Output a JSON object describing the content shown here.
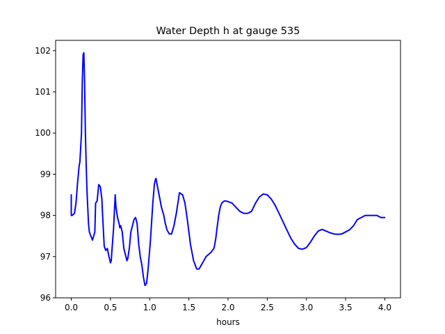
{
  "chart_data": {
    "type": "line",
    "title": "Water Depth h at gauge 535",
    "xlabel": "hours",
    "ylabel": "",
    "xlim": [
      -0.2,
      4.2
    ],
    "ylim": [
      96,
      102.25
    ],
    "xticks": [
      "0.0",
      "0.5",
      "1.0",
      "1.5",
      "2.0",
      "2.5",
      "3.0",
      "3.5",
      "4.0"
    ],
    "yticks": [
      "96",
      "97",
      "98",
      "99",
      "100",
      "101",
      "102"
    ],
    "grid": false,
    "legend": "none",
    "series": [
      {
        "color": "#0000ff",
        "x": [
          0.0,
          0.0,
          0.01,
          0.04,
          0.06,
          0.08,
          0.1,
          0.11,
          0.13,
          0.14,
          0.15,
          0.16,
          0.17,
          0.18,
          0.19,
          0.2,
          0.22,
          0.23,
          0.25,
          0.27,
          0.3,
          0.31,
          0.33,
          0.35,
          0.37,
          0.39,
          0.4,
          0.42,
          0.44,
          0.46,
          0.48,
          0.5,
          0.51,
          0.52,
          0.54,
          0.56,
          0.57,
          0.59,
          0.61,
          0.62,
          0.63,
          0.65,
          0.67,
          0.69,
          0.71,
          0.72,
          0.74,
          0.76,
          0.78,
          0.8,
          0.82,
          0.84,
          0.86,
          0.88,
          0.9,
          0.92,
          0.94,
          0.96,
          0.98,
          1.01,
          1.04,
          1.06,
          1.07,
          1.08,
          1.1,
          1.12,
          1.15,
          1.18,
          1.2,
          1.22,
          1.25,
          1.28,
          1.31,
          1.34,
          1.38,
          1.42,
          1.45,
          1.48,
          1.52,
          1.56,
          1.6,
          1.63,
          1.66,
          1.69,
          1.72,
          1.75,
          1.78,
          1.82,
          1.84,
          1.86,
          1.88,
          1.9,
          1.92,
          1.95,
          1.98,
          2.05,
          2.1,
          2.15,
          2.2,
          2.25,
          2.3,
          2.35,
          2.4,
          2.45,
          2.5,
          2.55,
          2.6,
          2.65,
          2.7,
          2.75,
          2.8,
          2.85,
          2.9,
          2.95,
          3.0,
          3.05,
          3.1,
          3.15,
          3.2,
          3.25,
          3.3,
          3.35,
          3.4,
          3.45,
          3.5,
          3.55,
          3.6,
          3.65,
          3.7,
          3.75,
          3.8,
          3.85,
          3.9,
          3.95,
          4.0
        ],
        "y": [
          98.5,
          98.0,
          98.0,
          98.05,
          98.3,
          98.8,
          99.2,
          99.3,
          100.0,
          101.2,
          101.9,
          101.95,
          101.2,
          100.0,
          99.2,
          98.6,
          97.8,
          97.6,
          97.5,
          97.4,
          97.6,
          98.3,
          98.35,
          98.75,
          98.7,
          98.4,
          98.0,
          97.25,
          97.15,
          97.2,
          97.0,
          96.85,
          96.9,
          97.2,
          97.7,
          98.5,
          98.2,
          97.95,
          97.8,
          97.7,
          97.75,
          97.6,
          97.2,
          97.05,
          96.9,
          96.95,
          97.2,
          97.6,
          97.75,
          97.9,
          97.95,
          97.8,
          97.3,
          97.0,
          96.8,
          96.5,
          96.3,
          96.35,
          96.7,
          97.4,
          98.3,
          98.75,
          98.85,
          98.9,
          98.7,
          98.5,
          98.2,
          98.0,
          97.8,
          97.65,
          97.55,
          97.55,
          97.75,
          98.05,
          98.55,
          98.5,
          98.3,
          97.9,
          97.3,
          96.9,
          96.7,
          96.7,
          96.8,
          96.9,
          97.0,
          97.05,
          97.1,
          97.2,
          97.4,
          97.7,
          98.0,
          98.2,
          98.3,
          98.35,
          98.35,
          98.3,
          98.2,
          98.1,
          98.05,
          98.05,
          98.1,
          98.3,
          98.45,
          98.52,
          98.5,
          98.4,
          98.25,
          98.05,
          97.85,
          97.65,
          97.45,
          97.3,
          97.2,
          97.18,
          97.22,
          97.35,
          97.5,
          97.62,
          97.66,
          97.62,
          97.58,
          97.55,
          97.54,
          97.55,
          97.6,
          97.65,
          97.75,
          97.9,
          97.95,
          98.0,
          98.0,
          98.0,
          98.0,
          97.95,
          97.95
        ]
      }
    ]
  }
}
